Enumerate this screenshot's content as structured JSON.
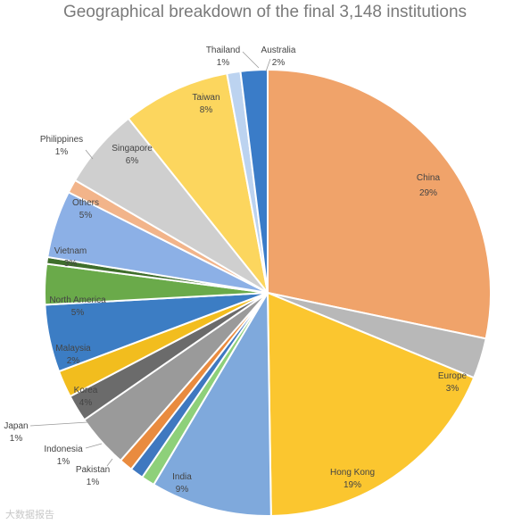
{
  "chart_data": {
    "type": "pie",
    "title": "Geographical breakdown of the final 3,148 institutions",
    "slices": [
      {
        "label": "China",
        "value": 29,
        "pct_label": "29%",
        "color": "#f0a36a"
      },
      {
        "label": "Europe",
        "value": 3,
        "pct_label": "3%",
        "color": "#b8b8b8"
      },
      {
        "label": "Hong Kong",
        "value": 19,
        "pct_label": "19%",
        "color": "#fbc62f"
      },
      {
        "label": "India",
        "value": 9,
        "pct_label": "9%",
        "color": "#7fa9dc"
      },
      {
        "label": "Pakistan",
        "value": 1,
        "pct_label": "1%",
        "color": "#8ed07a"
      },
      {
        "label": "Indonesia",
        "value": 1,
        "pct_label": "1%",
        "color": "#3f78c0"
      },
      {
        "label": "Japan",
        "value": 1,
        "pct_label": "1%",
        "color": "#e98b3f"
      },
      {
        "label": "Korea",
        "value": 4,
        "pct_label": "4%",
        "color": "#9a9a9a"
      },
      {
        "label": "",
        "value": 2,
        "pct_label": "",
        "color": "#6b6b6b"
      },
      {
        "label": "Malaysia",
        "value": 2,
        "pct_label": "2%",
        "color": "#f2bd1e"
      },
      {
        "label": "North America",
        "value": 5,
        "pct_label": "5%",
        "color": "#3c7dc4"
      },
      {
        "label": "Vietnam",
        "value": 3,
        "pct_label": "3%",
        "color": "#6aaa4a"
      },
      {
        "label": "",
        "value": 0.5,
        "pct_label": "",
        "color": "#3f6e2c"
      },
      {
        "label": "Others",
        "value": 5,
        "pct_label": "5%",
        "color": "#8cb0e6"
      },
      {
        "label": "Philippines",
        "value": 1,
        "pct_label": "1%",
        "color": "#f2b48a"
      },
      {
        "label": "Singapore",
        "value": 6,
        "pct_label": "6%",
        "color": "#cfcfcf"
      },
      {
        "label": "Taiwan",
        "value": 8,
        "pct_label": "8%",
        "color": "#fcd65e"
      },
      {
        "label": "Thailand",
        "value": 1,
        "pct_label": "1%",
        "color": "#bcd3f0"
      },
      {
        "label": "Australia",
        "value": 2,
        "pct_label": "2%",
        "color": "#3a7cc8"
      }
    ],
    "legend": "none",
    "start_angle_deg": 0,
    "direction": "clockwise"
  },
  "watermark": "大数据报告"
}
